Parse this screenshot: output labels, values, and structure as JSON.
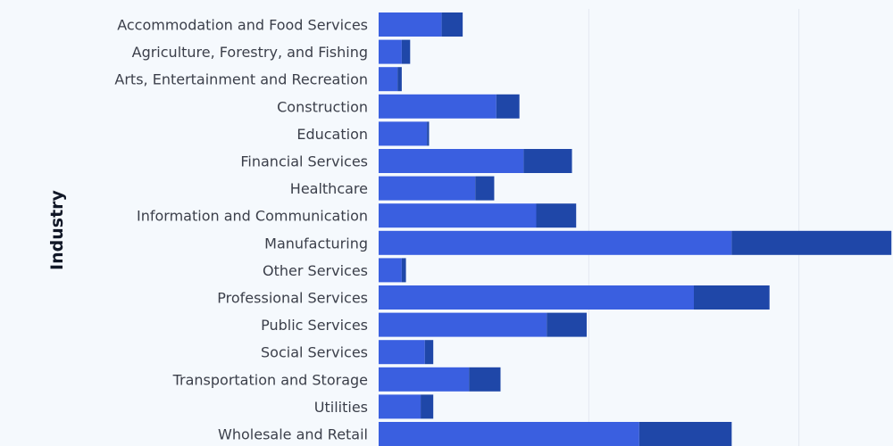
{
  "chart_data": {
    "type": "bar",
    "orientation": "horizontal",
    "stacked": true,
    "ylabel": "Industry",
    "xlabel": "",
    "xlim": [
      0,
      1500
    ],
    "grid": true,
    "categories": [
      "Accommodation and Food Services",
      "Agriculture, Forestry, and Fishing",
      "Arts, Entertainment and Recreation",
      "Construction",
      "Education",
      "Financial Services",
      "Healthcare",
      "Information and Communication",
      "Manufacturing",
      "Other Services",
      "Professional Services",
      "Public Services",
      "Social Services",
      "Transportation and Storage",
      "Utilities",
      "Wholesale and Retail"
    ],
    "series": [
      {
        "color": "#3a5fe0",
        "values": [
          150,
          55,
          45,
          280,
          115,
          345,
          230,
          375,
          840,
          55,
          750,
          400,
          110,
          215,
          100,
          620
        ]
      },
      {
        "color": "#1f47a8",
        "values": [
          50,
          20,
          10,
          55,
          5,
          115,
          45,
          95,
          380,
          10,
          180,
          95,
          20,
          75,
          30,
          220
        ]
      }
    ]
  }
}
